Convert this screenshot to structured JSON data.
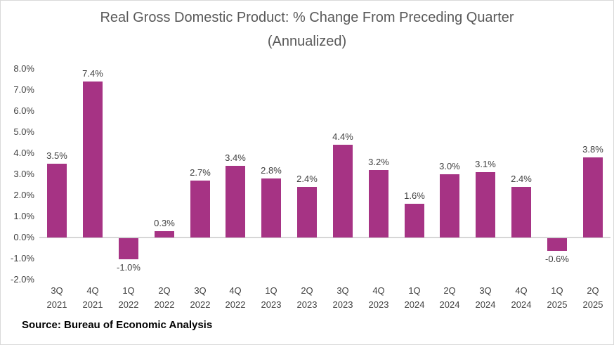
{
  "chart_data": {
    "type": "bar",
    "title": "Real Gross Domestic Product: % Change From Preceding Quarter",
    "subtitle": "(Annualized)",
    "source": "Source: Bureau of Economic Analysis",
    "categories": [
      "3Q 2021",
      "4Q 2021",
      "1Q 2022",
      "2Q 2022",
      "3Q 2022",
      "4Q 2022",
      "1Q 2023",
      "2Q 2023",
      "3Q 2023",
      "4Q 2023",
      "1Q 2024",
      "2Q 2024",
      "3Q 2024",
      "4Q 2024",
      "1Q 2025",
      "2Q 2025"
    ],
    "values": [
      3.5,
      7.4,
      -1.0,
      0.3,
      2.7,
      3.4,
      2.8,
      2.4,
      4.4,
      3.2,
      1.6,
      3.0,
      3.1,
      2.4,
      -0.6,
      3.8
    ],
    "data_labels": [
      "3.5%",
      "7.4%",
      "-1.0%",
      "0.3%",
      "2.7%",
      "3.4%",
      "2.8%",
      "2.4%",
      "4.4%",
      "3.2%",
      "1.6%",
      "3.0%",
      "3.1%",
      "2.4%",
      "-0.6%",
      "3.8%"
    ],
    "y_ticks": [
      "8.0%",
      "7.0%",
      "6.0%",
      "5.0%",
      "4.0%",
      "3.0%",
      "2.0%",
      "1.0%",
      "0.0%",
      "-1.0%",
      "-2.0%"
    ],
    "ylim": [
      -2.0,
      8.0
    ],
    "y_step": 1.0,
    "xlabel": "",
    "ylabel": "",
    "legend": "none",
    "grid": "zero-baseline-only",
    "colors": {
      "bar": "#A63384",
      "title_text": "#595959",
      "axis_text": "#404040",
      "baseline": "#D6D6D6",
      "source_text": "#000000"
    }
  }
}
